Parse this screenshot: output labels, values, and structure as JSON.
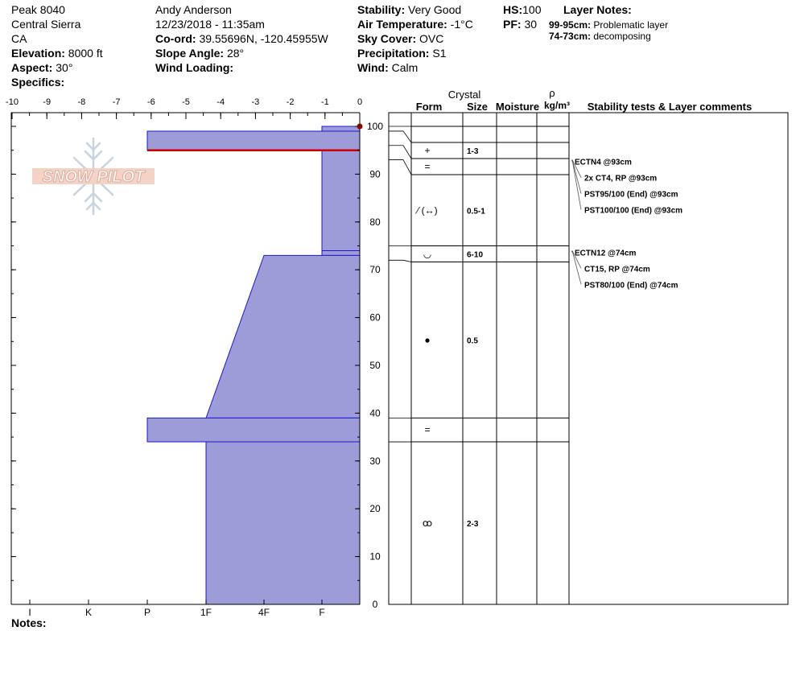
{
  "header": {
    "location": "Peak 8040",
    "range": "Central Sierra",
    "state": "CA",
    "elevation_label": "Elevation:",
    "elevation": "8000 ft",
    "aspect_label": "Aspect:",
    "aspect": "30°",
    "specifics_label": "Specifics:",
    "observer": "Andy Anderson",
    "datetime": "12/23/2018 - 11:35am",
    "coord_label": "Co-ord:",
    "coord": "39.55696N, -120.45955W",
    "slope_label": "Slope Angle:",
    "slope": "28°",
    "wind_loading_label": "Wind Loading:",
    "stability_label": "Stability:",
    "stability": "Very Good",
    "air_temp_label": "Air Temperature:",
    "air_temp": "-1°C",
    "sky_label": "Sky Cover:",
    "sky": "OVC",
    "precip_label": "Precipitation:",
    "precip": "S1",
    "wind_label": "Wind:",
    "wind": "Calm",
    "hs_label": "HS:",
    "hs": "100",
    "pf_label": "PF:",
    "pf": "30",
    "layer_notes_title": "Layer Notes:",
    "layer_notes": [
      {
        "range": "99-95cm:",
        "text": "Problematic layer"
      },
      {
        "range": "74-73cm:",
        "text": "decomposing"
      }
    ]
  },
  "logo_text": "SNOW PILOT",
  "notes_label": "Notes:",
  "table_headers": {
    "crystal": "Crystal",
    "form": "Form",
    "size": "Size",
    "moisture": "Moisture",
    "rho": "ρ",
    "density_unit": "kg/m³",
    "stability": "Stability tests & Layer comments"
  },
  "colors": {
    "profile_fill": "#9d9bd8",
    "profile_stroke": "#1a1acc",
    "problem_line": "#cc0000"
  },
  "chart_data": {
    "type": "area",
    "title": "",
    "temperature_axis": {
      "ticks": [
        "-10",
        "-9",
        "-8",
        "-7",
        "-6",
        "-5",
        "-4",
        "-3",
        "-2",
        "-1",
        "0"
      ],
      "range": [
        -10,
        0
      ]
    },
    "hardness_axis": {
      "ticks": [
        "I",
        "K",
        "P",
        "1F",
        "4F",
        "F"
      ]
    },
    "height_axis": {
      "ticks": [
        "100",
        "90",
        "80",
        "70",
        "60",
        "50",
        "40",
        "30",
        "20",
        "10",
        "0"
      ],
      "range": [
        0,
        100
      ]
    },
    "hardness_profile": [
      {
        "top": 100,
        "bottom": 99,
        "hardness_top": "F",
        "hardness_bottom": "F"
      },
      {
        "top": 99,
        "bottom": 95,
        "hardness_top": "P",
        "hardness_bottom": "P"
      },
      {
        "top": 95,
        "bottom": 74,
        "hardness_top": "F",
        "hardness_bottom": "F"
      },
      {
        "top": 74,
        "bottom": 73,
        "hardness_top": "F",
        "hardness_bottom": "F"
      },
      {
        "top": 73,
        "bottom": 39,
        "hardness_top": "4F",
        "hardness_bottom": "1F"
      },
      {
        "top": 39,
        "bottom": 34,
        "hardness_top": "P",
        "hardness_bottom": "P"
      },
      {
        "top": 34,
        "bottom": 0,
        "hardness_top": "1F",
        "hardness_bottom": "1F"
      }
    ],
    "problem_layer_top": 95,
    "surface_temperature": {
      "height": 100,
      "temp": 0
    },
    "layers": [
      {
        "top": 99,
        "bottom": 96,
        "form": "+",
        "size": "1-3"
      },
      {
        "top": 96,
        "bottom": 93,
        "form": "=",
        "size": ""
      },
      {
        "top": 93,
        "bottom": 75,
        "form": "⁄ (↔)",
        "size": "0.5-1"
      },
      {
        "top": 75,
        "bottom": 72,
        "form": "◡",
        "size": "6-10"
      },
      {
        "top": 72,
        "bottom": 39,
        "form": "●",
        "size": "0.5"
      },
      {
        "top": 39,
        "bottom": 34,
        "form": "=",
        "size": ""
      },
      {
        "top": 34,
        "bottom": 0,
        "form": "ꝏ",
        "size": "2-3"
      }
    ],
    "stability_tests": [
      {
        "text": "ECTN4 @93cm",
        "height": 93
      },
      {
        "text": "2x CT4, RP @93cm",
        "height": 93
      },
      {
        "text": "PST95/100 (End) @93cm",
        "height": 93
      },
      {
        "text": "PST100/100 (End) @93cm",
        "height": 93
      },
      {
        "text": "ECTN12 @74cm",
        "height": 74
      },
      {
        "text": "CT15, RP @74cm",
        "height": 74
      },
      {
        "text": "PST80/100 (End) @74cm",
        "height": 74
      }
    ]
  }
}
